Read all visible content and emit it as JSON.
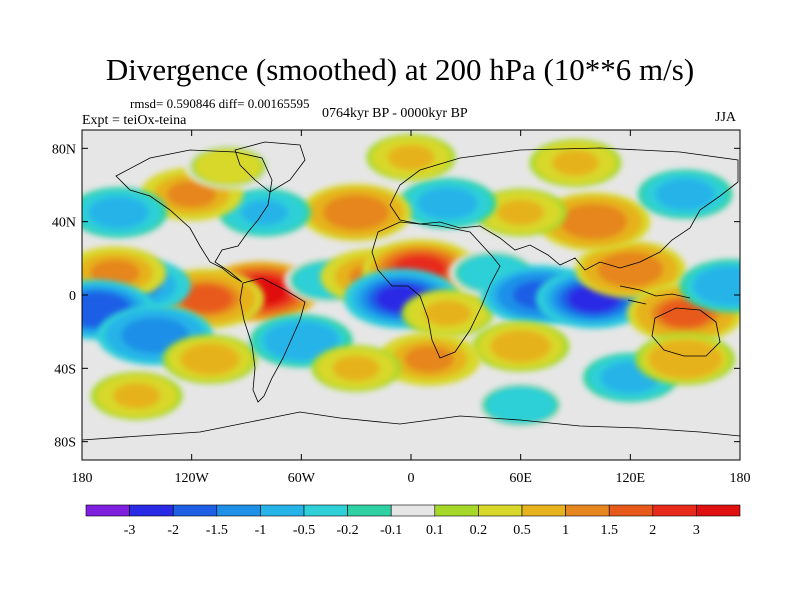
{
  "chart_data": {
    "type": "heatmap",
    "title": "Divergence (smoothed) at 200 hPa (10**6 m/s)",
    "stats_line": "rmsd= 0.590846 diff= 0.00165595",
    "experiment": "Expt = teiOx-teina",
    "period": "0764kyr BP - 0000kyr BP",
    "season": "JJA",
    "xlim": [
      -180,
      180
    ],
    "ylim": [
      -90,
      90
    ],
    "x_ticks": [
      {
        "value": -180,
        "label": "180"
      },
      {
        "value": -120,
        "label": "120W"
      },
      {
        "value": -60,
        "label": "60W"
      },
      {
        "value": 0,
        "label": "0"
      },
      {
        "value": 60,
        "label": "60E"
      },
      {
        "value": 120,
        "label": "120E"
      },
      {
        "value": 180,
        "label": "180"
      }
    ],
    "y_ticks": [
      {
        "value": 80,
        "label": "80N"
      },
      {
        "value": 40,
        "label": "40N"
      },
      {
        "value": 0,
        "label": "0"
      },
      {
        "value": -40,
        "label": "40S"
      },
      {
        "value": -80,
        "label": "80S"
      }
    ],
    "colorbar": {
      "levels": [
        "-3",
        "-2",
        "-1.5",
        "-1",
        "-0.5",
        "-0.2",
        "-0.1",
        "0.1",
        "0.2",
        "0.5",
        "1",
        "1.5",
        "2",
        "3"
      ],
      "colors": [
        "#7f1fe0",
        "#2a2ae6",
        "#1e5fe6",
        "#1e90e8",
        "#26b4e8",
        "#2fd0d8",
        "#2ed2a2",
        "#e6e6e6",
        "#a6d82a",
        "#d8d82a",
        "#e6b21e",
        "#e6861e",
        "#e85a1a",
        "#e82a1a",
        "#e01010"
      ]
    },
    "anomalies": [
      {
        "lon": -82,
        "lat": 2,
        "value": 3.2
      },
      {
        "lon": -112,
        "lat": -2,
        "value": 1.6
      },
      {
        "lon": -150,
        "lat": 5,
        "value": -1.2
      },
      {
        "lon": -162,
        "lat": 12,
        "value": 1.0
      },
      {
        "lon": -172,
        "lat": -8,
        "value": -2.0
      },
      {
        "lon": -140,
        "lat": -22,
        "value": -1.5
      },
      {
        "lon": -110,
        "lat": -35,
        "value": 0.7
      },
      {
        "lon": -60,
        "lat": -25,
        "value": -1.0
      },
      {
        "lon": -45,
        "lat": 8,
        "value": -0.5
      },
      {
        "lon": -20,
        "lat": 10,
        "value": 1.2
      },
      {
        "lon": 5,
        "lat": 14,
        "value": 2.1
      },
      {
        "lon": -5,
        "lat": -2,
        "value": -2.4
      },
      {
        "lon": 20,
        "lat": -10,
        "value": 0.6
      },
      {
        "lon": 45,
        "lat": 12,
        "value": -0.5
      },
      {
        "lon": 70,
        "lat": 0,
        "value": -1.8
      },
      {
        "lon": 100,
        "lat": -2,
        "value": -2.2
      },
      {
        "lon": 120,
        "lat": 14,
        "value": 1.3
      },
      {
        "lon": 150,
        "lat": -10,
        "value": 1.6
      },
      {
        "lon": 175,
        "lat": 5,
        "value": -1.0
      },
      {
        "lon": 60,
        "lat": -28,
        "value": 0.8
      },
      {
        "lon": 10,
        "lat": -35,
        "value": 1.0
      },
      {
        "lon": -30,
        "lat": -40,
        "value": 0.5
      },
      {
        "lon": 100,
        "lat": 40,
        "value": 1.4
      },
      {
        "lon": 60,
        "lat": 45,
        "value": 0.6
      },
      {
        "lon": 20,
        "lat": 50,
        "value": -0.8
      },
      {
        "lon": -30,
        "lat": 45,
        "value": 1.3
      },
      {
        "lon": -80,
        "lat": 45,
        "value": -0.6
      },
      {
        "lon": -120,
        "lat": 55,
        "value": 1.0
      },
      {
        "lon": -160,
        "lat": 45,
        "value": -0.8
      },
      {
        "lon": 150,
        "lat": 55,
        "value": -0.7
      },
      {
        "lon": 0,
        "lat": 75,
        "value": 0.5
      },
      {
        "lon": -100,
        "lat": 70,
        "value": 0.4
      },
      {
        "lon": 90,
        "lat": 72,
        "value": 0.6
      },
      {
        "lon": -150,
        "lat": -55,
        "value": 0.6
      },
      {
        "lon": 120,
        "lat": -45,
        "value": -0.7
      },
      {
        "lon": 60,
        "lat": -60,
        "value": -0.5
      },
      {
        "lon": 150,
        "lat": -35,
        "value": 0.9
      }
    ]
  }
}
